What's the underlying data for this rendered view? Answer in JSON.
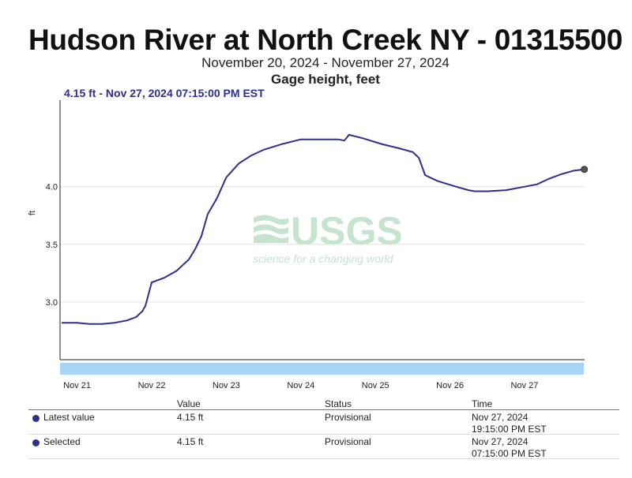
{
  "chart_data": {
    "type": "line",
    "title": "Hudson River at North Creek NY - 01315500",
    "subtitle": "November 20, 2024 - November 27, 2024",
    "parameter": "Gage height, feet",
    "hover_label": "4.15 ft - Nov 27, 2024 07:15:00 PM EST",
    "ylabel": "ft",
    "ylim": [
      2.5,
      4.75
    ],
    "yticks": [
      "4.0",
      "3.5",
      "3.0"
    ],
    "xticks": [
      "Nov 21",
      "Nov 22",
      "Nov 23",
      "Nov 24",
      "Nov 25",
      "Nov 26",
      "Nov 27"
    ],
    "grid": true,
    "line_color": "#2b2f8f",
    "series": [
      {
        "x": [
          "2024-11-20 19:00",
          "2024-11-21 00:00",
          "2024-11-21 04:00",
          "2024-11-21 08:00",
          "2024-11-21 12:00",
          "2024-11-21 16:00",
          "2024-11-21 19:00",
          "2024-11-21 21:00",
          "2024-11-21 22:00",
          "2024-11-22 00:00",
          "2024-11-22 04:00",
          "2024-11-22 08:00",
          "2024-11-22 12:00",
          "2024-11-22 14:00",
          "2024-11-22 16:00",
          "2024-11-22 18:00",
          "2024-11-22 21:00",
          "2024-11-23 00:00",
          "2024-11-23 04:00",
          "2024-11-23 08:00",
          "2024-11-23 12:00",
          "2024-11-23 18:00",
          "2024-11-24 00:00",
          "2024-11-24 06:00",
          "2024-11-24 12:00",
          "2024-11-24 14:00",
          "2024-11-24 15:30",
          "2024-11-24 20:00",
          "2024-11-25 02:00",
          "2024-11-25 08:00",
          "2024-11-25 12:00",
          "2024-11-25 14:00",
          "2024-11-25 16:00",
          "2024-11-25 20:00",
          "2024-11-26 02:00",
          "2024-11-26 06:00",
          "2024-11-26 08:00",
          "2024-11-26 12:00",
          "2024-11-26 18:00",
          "2024-11-27 00:00",
          "2024-11-27 04:00",
          "2024-11-27 08:00",
          "2024-11-27 12:00",
          "2024-11-27 16:00",
          "2024-11-27 19:15"
        ],
        "y": [
          2.82,
          2.82,
          2.81,
          2.81,
          2.82,
          2.84,
          2.87,
          2.92,
          2.97,
          3.17,
          3.21,
          3.27,
          3.37,
          3.46,
          3.57,
          3.76,
          3.9,
          4.08,
          4.2,
          4.27,
          4.32,
          4.37,
          4.41,
          4.41,
          4.41,
          4.4,
          4.45,
          4.42,
          4.37,
          4.33,
          4.3,
          4.25,
          4.1,
          4.05,
          4.0,
          3.97,
          3.96,
          3.96,
          3.97,
          4.0,
          4.02,
          4.07,
          4.11,
          4.14,
          4.15
        ]
      }
    ]
  },
  "table": {
    "headers": [
      "Value",
      "Status",
      "Time"
    ],
    "rows": [
      {
        "label": "Latest value",
        "value": "4.15 ft",
        "status": "Provisional",
        "time1": "Nov 27, 2024",
        "time2": "19:15:00 PM EST"
      },
      {
        "label": "Selected",
        "value": "4.15 ft",
        "status": "Provisional",
        "time1": "Nov 27, 2024",
        "time2": "07:15:00 PM EST"
      }
    ]
  },
  "watermark": {
    "line1": "USGS",
    "line2": "science for a changing world"
  }
}
